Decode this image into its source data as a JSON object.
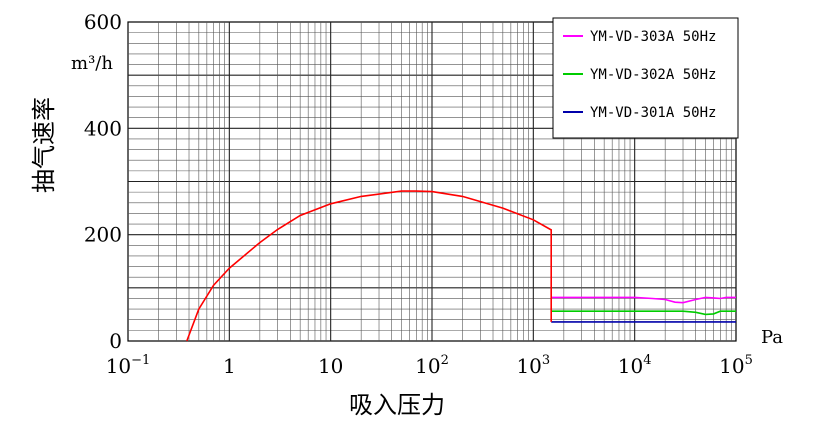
{
  "chart_data": {
    "type": "line",
    "xlabel": "吸入压力",
    "ylabel": "抽气速率",
    "y_unit": "m³/h",
    "x_unit": "Pa",
    "x_scale": "log",
    "xlim": [
      0.1,
      100000
    ],
    "ylim": [
      0,
      600
    ],
    "grid": true,
    "legend_position": "top-right",
    "y_ticks": [
      "0",
      "200",
      "400",
      "600"
    ],
    "x_ticks": [
      {
        "base": "10",
        "exp": "−1",
        "value": 0.1
      },
      {
        "base": "1",
        "exp": "",
        "value": 1
      },
      {
        "base": "10",
        "exp": "",
        "value": 10
      },
      {
        "base": "10",
        "exp": "2",
        "value": 100
      },
      {
        "base": "10",
        "exp": "3",
        "value": 1000
      },
      {
        "base": "10",
        "exp": "4",
        "value": 10000
      },
      {
        "base": "10",
        "exp": "5",
        "value": 100000
      }
    ],
    "series": [
      {
        "name": "YM-VD-303A 50Hz",
        "color": "#ff00ff",
        "x": [
          1500,
          2000,
          5000,
          10000,
          15000,
          20000,
          25000,
          30000,
          40000,
          50000,
          60000,
          70000,
          80000,
          100000
        ],
        "y": [
          82,
          82,
          82,
          82,
          80,
          78,
          73,
          72,
          78,
          82,
          81,
          80,
          82,
          82
        ]
      },
      {
        "name": "YM-VD-302A 50Hz",
        "color": "#00cc00",
        "x": [
          1500,
          2000,
          5000,
          10000,
          20000,
          30000,
          40000,
          50000,
          60000,
          70000,
          80000,
          100000
        ],
        "y": [
          56,
          56,
          56,
          56,
          56,
          56,
          54,
          50,
          51,
          56,
          56,
          56
        ]
      },
      {
        "name": "YM-VD-301A 50Hz",
        "color": "#0000aa",
        "x": [
          1500,
          2000,
          5000,
          10000,
          50000,
          100000
        ],
        "y": [
          36,
          36,
          36,
          36,
          36,
          36
        ]
      },
      {
        "name": "",
        "color": "#ff0000",
        "x": [
          0.38,
          0.5,
          0.7,
          1,
          2,
          3,
          5,
          10,
          20,
          50,
          70,
          100,
          200,
          500,
          1000,
          1500,
          1500
        ],
        "y": [
          0,
          60,
          105,
          137,
          185,
          210,
          236,
          258,
          272,
          282,
          282,
          281,
          272,
          250,
          228,
          209,
          36
        ]
      }
    ]
  }
}
